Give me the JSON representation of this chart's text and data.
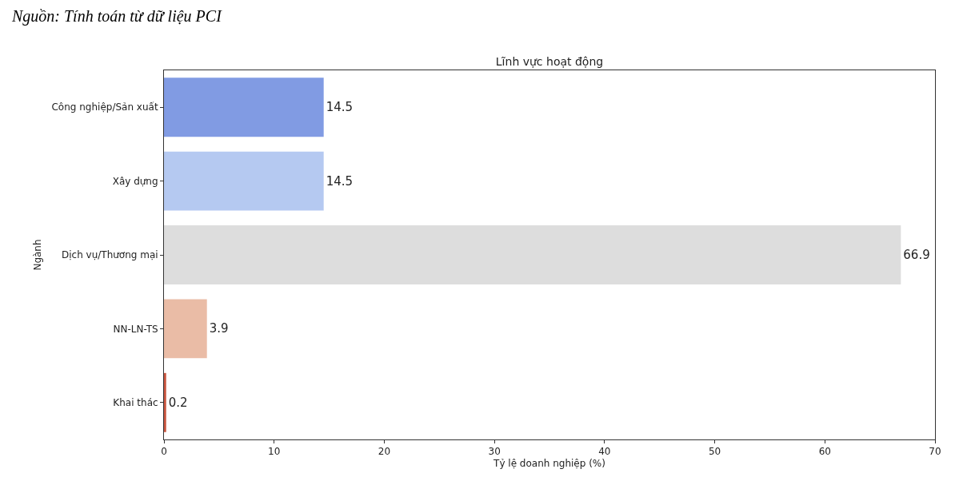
{
  "chart_data": {
    "type": "bar",
    "orientation": "horizontal",
    "title": "Lĩnh vực hoạt động",
    "xlabel": "Tỷ lệ doanh nghiệp (%)",
    "ylabel": "Ngành",
    "categories": [
      "Công nghiệp/Sản xuất",
      "Xây dựng",
      "Dịch vụ/Thương mại",
      "NN-LN-TS",
      "Khai thác"
    ],
    "values": [
      14.5,
      14.5,
      66.9,
      3.9,
      0.2
    ],
    "colors": [
      "#819be3",
      "#b5c9f1",
      "#dddddd",
      "#eabca6",
      "#c9553f"
    ],
    "data_labels": true,
    "xlim": [
      0,
      70
    ],
    "xticks": [
      0,
      10,
      20,
      30,
      40,
      50,
      60,
      70
    ],
    "annotations": [
      "Nguồn: Tính toán từ dữ liệu PCI"
    ]
  }
}
